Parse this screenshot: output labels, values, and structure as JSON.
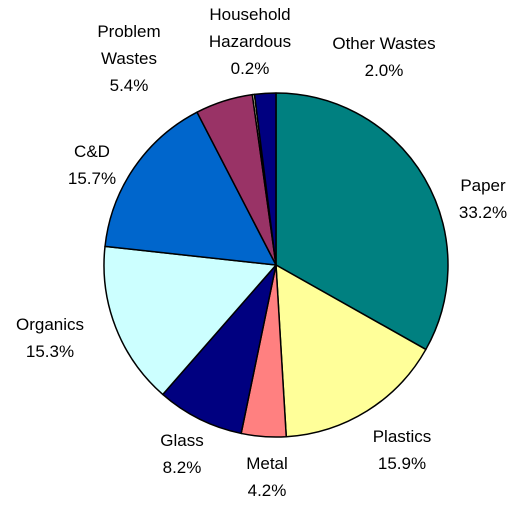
{
  "chart_data": {
    "type": "pie",
    "title": "",
    "start_angle_deg": 0,
    "direction": "clockwise",
    "legend": "none",
    "slices": [
      {
        "label": [
          "Paper"
        ],
        "pct_text": "33.2%",
        "value": 33.2,
        "color": "#008080"
      },
      {
        "label": [
          "Plastics"
        ],
        "pct_text": "15.9%",
        "value": 15.9,
        "color": "#FFFF99"
      },
      {
        "label": [
          "Metal"
        ],
        "pct_text": "4.2%",
        "value": 4.2,
        "color": "#FF8080"
      },
      {
        "label": [
          "Glass"
        ],
        "pct_text": "8.2%",
        "value": 8.2,
        "color": "#000080"
      },
      {
        "label": [
          "Organics"
        ],
        "pct_text": "15.3%",
        "value": 15.3,
        "color": "#CCFFFF"
      },
      {
        "label": [
          "C&D"
        ],
        "pct_text": "15.7%",
        "value": 15.7,
        "color": "#0066CC"
      },
      {
        "label": [
          "Problem",
          "Wastes"
        ],
        "pct_text": "5.4%",
        "value": 5.4,
        "color": "#993366"
      },
      {
        "label": [
          "Household",
          "Hazardous"
        ],
        "pct_text": "0.2%",
        "value": 0.2,
        "color": "#FFFFCC"
      },
      {
        "label": [
          "Other Wastes"
        ],
        "pct_text": "2.0%",
        "value": 2.0,
        "color": "#000080"
      }
    ]
  }
}
